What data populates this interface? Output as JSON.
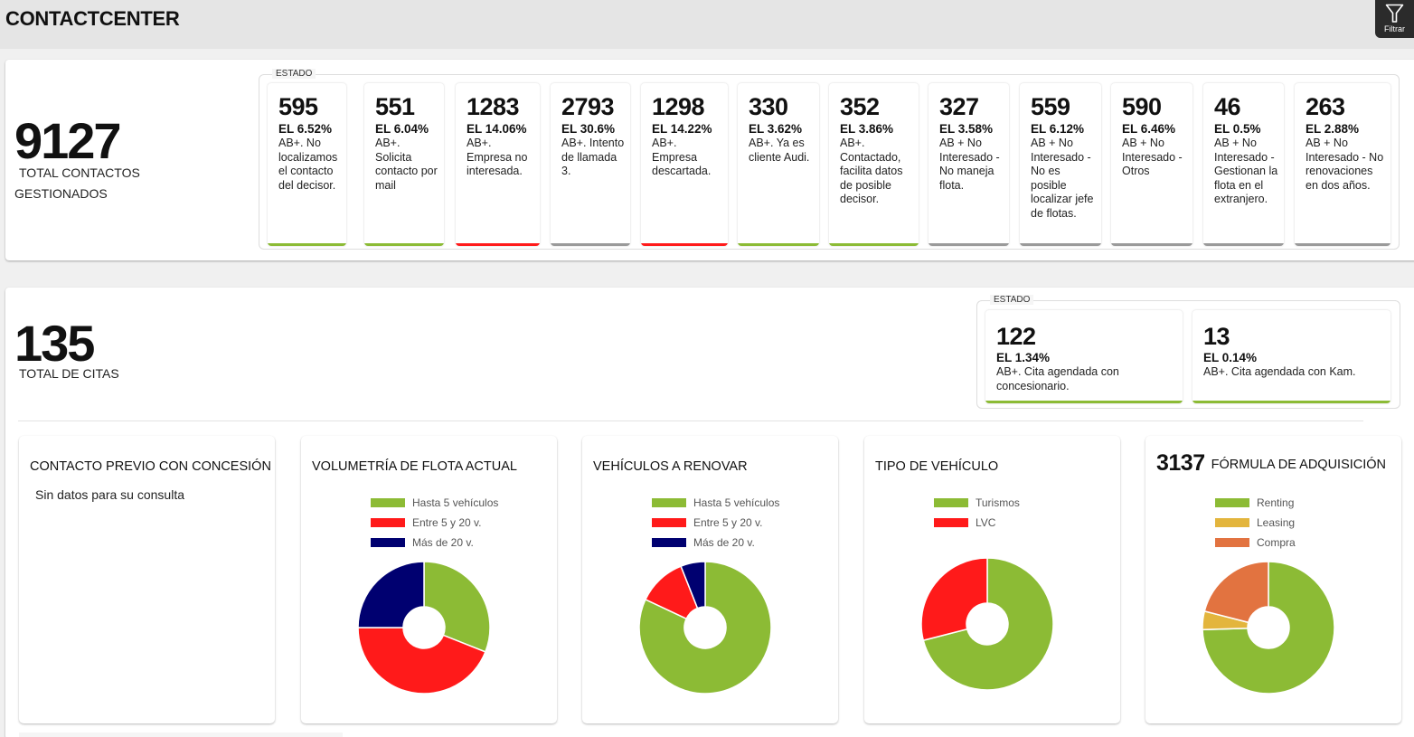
{
  "header": {
    "title": "CONTACTCENTER",
    "filter_button": {
      "label": "Filtrar",
      "icon": "filter-icon"
    }
  },
  "contacts": {
    "total": "9127",
    "total_label_line1": "TOTAL CONTACTOS",
    "total_label_line2": "GESTIONADOS",
    "estado_label": "ESTADO",
    "cards": [
      {
        "value": "595",
        "pct": "EL 6.52%",
        "desc": "AB+. No localizamos el contacto del decisor.",
        "status": "green"
      },
      {
        "value": "551",
        "pct": "EL 6.04%",
        "desc": "AB+. Solicita contacto por mail",
        "status": "green"
      },
      {
        "value": "1283",
        "pct": "EL 14.06%",
        "desc": "AB+. Empresa no interesada.",
        "status": "red"
      },
      {
        "value": "2793",
        "pct": "EL 30.6%",
        "desc": "AB+. Intento de llamada 3.",
        "status": "gray"
      },
      {
        "value": "1298",
        "pct": "EL 14.22%",
        "desc": "AB+. Empresa descartada.",
        "status": "red"
      },
      {
        "value": "330",
        "pct": "EL 3.62%",
        "desc": "AB+. Ya es cliente Audi.",
        "status": "green"
      },
      {
        "value": "352",
        "pct": "EL 3.86%",
        "desc": "AB+. Contactado, facilita datos de posible decisor.",
        "status": "green"
      },
      {
        "value": "327",
        "pct": "EL 3.58%",
        "desc": "AB + No Interesado - No maneja flota.",
        "status": "gray"
      },
      {
        "value": "559",
        "pct": "EL 6.12%",
        "desc": "AB + No Interesado - No es posible localizar jefe de flotas.",
        "status": "gray"
      },
      {
        "value": "590",
        "pct": "EL 6.46%",
        "desc": "AB + No Interesado - Otros",
        "status": "gray"
      },
      {
        "value": "46",
        "pct": "EL 0.5%",
        "desc": "AB + No Interesado - Gestionan la flota en el extranjero.",
        "status": "gray"
      },
      {
        "value": "263",
        "pct": "EL 2.88%",
        "desc": "AB + No Interesado - No renovaciones en dos años.",
        "status": "gray"
      }
    ]
  },
  "citas": {
    "total": "135",
    "total_label": "TOTAL DE CITAS",
    "estado_label": "ESTADO",
    "cards": [
      {
        "value": "122",
        "pct": "EL 1.34%",
        "desc": "AB+. Cita agendada con concesionario.",
        "status": "green"
      },
      {
        "value": "13",
        "pct": "EL 0.14%",
        "desc": "AB+. Cita agendada con Kam.",
        "status": "green"
      }
    ]
  },
  "status_colors": {
    "green": "#8cbb35",
    "red": "#ff1a1a",
    "gray": "#9a9a9a"
  },
  "contacto_previo": {
    "title": "CONTACTO PREVIO CON CONCESIÓN",
    "empty_message": "Sin datos para su consulta"
  },
  "chart_data": [
    {
      "type": "pie",
      "title": "VOLUMETRÍA DE FLOTA ACTUAL",
      "donut": true,
      "legend_position": "top",
      "categories": [
        "Hasta 5 vehículos",
        "Entre 5 y 20 v.",
        "Más de 20 v."
      ],
      "values": [
        31,
        44,
        25
      ],
      "colors": [
        "#8cbb35",
        "#ff1a1a",
        "#000070"
      ]
    },
    {
      "type": "pie",
      "title": "VEHÍCULOS A RENOVAR",
      "donut": true,
      "legend_position": "top",
      "categories": [
        "Hasta 5 vehículos",
        "Entre 5 y 20 v.",
        "Más de 20 v."
      ],
      "values": [
        82,
        12,
        6
      ],
      "colors": [
        "#8cbb35",
        "#ff1a1a",
        "#000070"
      ]
    },
    {
      "type": "pie",
      "title": "TIPO DE VEHÍCULO",
      "donut": true,
      "legend_position": "top",
      "categories": [
        "Turismos",
        "LVC"
      ],
      "values": [
        71,
        29
      ],
      "colors": [
        "#8cbb35",
        "#ff1a1a"
      ]
    },
    {
      "type": "pie",
      "title": "FÓRMULA DE ADQUISICIÓN",
      "kpi": "3137",
      "donut": true,
      "legend_position": "top",
      "categories": [
        "Renting",
        "Leasing",
        "Compra"
      ],
      "values": [
        74.5,
        4.5,
        21
      ],
      "colors": [
        "#8cbb35",
        "#e3b53d",
        "#e27340"
      ]
    }
  ]
}
